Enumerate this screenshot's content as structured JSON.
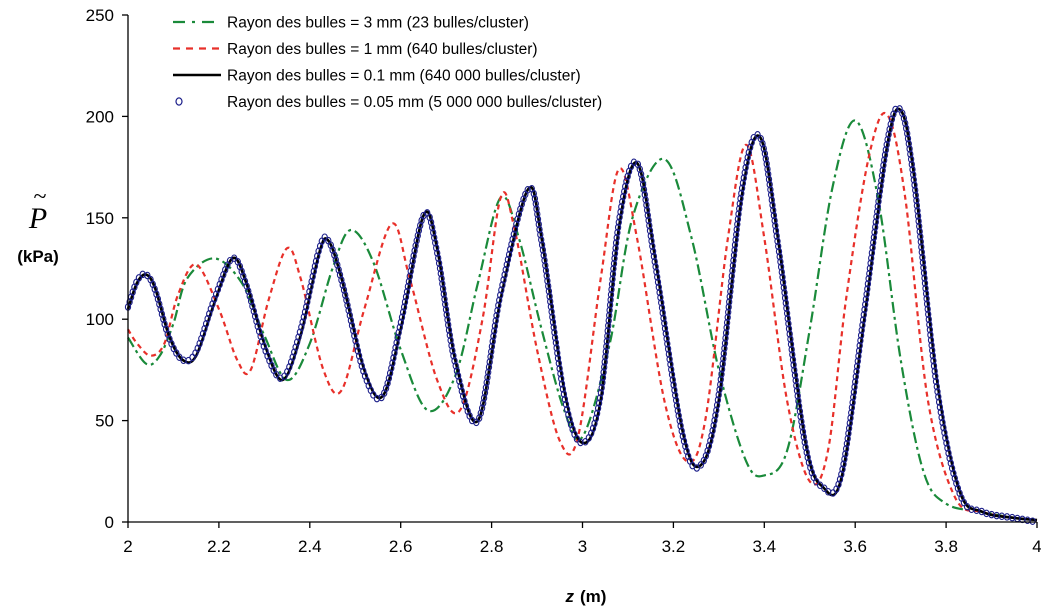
{
  "chart_data": {
    "type": "line",
    "xlabel_var": "z",
    "xlabel_unit": "(m)",
    "ylabel_symbol": "P",
    "ylabel_accent": "~",
    "ylabel_unit": "(kPa)",
    "xlim": [
      2,
      4
    ],
    "ylim": [
      0,
      250
    ],
    "xticks": [
      "2",
      "2.2",
      "2.4",
      "2.6",
      "2.8",
      "3",
      "3.2",
      "3.4",
      "3.6",
      "3.8",
      "4"
    ],
    "yticks": [
      "0",
      "50",
      "100",
      "150",
      "200",
      "250"
    ],
    "grid": false,
    "legend_position": "top-left",
    "colors": {
      "axis": "#000000",
      "green": "#1a8a3a",
      "red": "#e8302a",
      "black": "#000000",
      "navy": "#1c1f8a"
    },
    "series": [
      {
        "name": "Rayon des bulles = 3 mm (23 bulles/cluster)",
        "style": "dash-dot",
        "color": "#1a8a3a",
        "points": [
          [
            2.0,
            91
          ],
          [
            2.04,
            78
          ],
          [
            2.07,
            82
          ],
          [
            2.1,
            98
          ],
          [
            2.13,
            120
          ],
          [
            2.19,
            130
          ],
          [
            2.25,
            118
          ],
          [
            2.3,
            92
          ],
          [
            2.35,
            70
          ],
          [
            2.4,
            88
          ],
          [
            2.45,
            125
          ],
          [
            2.49,
            144
          ],
          [
            2.54,
            128
          ],
          [
            2.6,
            85
          ],
          [
            2.66,
            55
          ],
          [
            2.72,
            72
          ],
          [
            2.77,
            118
          ],
          [
            2.82,
            160
          ],
          [
            2.86,
            140
          ],
          [
            2.91,
            95
          ],
          [
            2.96,
            55
          ],
          [
            3.0,
            42
          ],
          [
            3.06,
            88
          ],
          [
            3.11,
            150
          ],
          [
            3.18,
            179
          ],
          [
            3.24,
            140
          ],
          [
            3.3,
            75
          ],
          [
            3.36,
            30
          ],
          [
            3.4,
            23
          ],
          [
            3.45,
            35
          ],
          [
            3.5,
            95
          ],
          [
            3.55,
            165
          ],
          [
            3.6,
            198
          ],
          [
            3.65,
            160
          ],
          [
            3.7,
            80
          ],
          [
            3.75,
            25
          ],
          [
            3.8,
            9
          ],
          [
            3.88,
            5
          ],
          [
            3.95,
            2
          ],
          [
            4.0,
            1
          ]
        ]
      },
      {
        "name": "Rayon des bulles = 1 mm (640 bulles/cluster)",
        "style": "dashed",
        "color": "#e8302a",
        "points": [
          [
            2.0,
            95
          ],
          [
            2.02,
            88
          ],
          [
            2.05,
            82
          ],
          [
            2.08,
            88
          ],
          [
            2.11,
            112
          ],
          [
            2.15,
            127
          ],
          [
            2.2,
            105
          ],
          [
            2.24,
            80
          ],
          [
            2.27,
            75
          ],
          [
            2.31,
            110
          ],
          [
            2.35,
            135
          ],
          [
            2.38,
            120
          ],
          [
            2.43,
            75
          ],
          [
            2.47,
            65
          ],
          [
            2.52,
            105
          ],
          [
            2.58,
            147
          ],
          [
            2.62,
            120
          ],
          [
            2.68,
            70
          ],
          [
            2.73,
            55
          ],
          [
            2.78,
            100
          ],
          [
            2.82,
            160
          ],
          [
            2.85,
            145
          ],
          [
            2.9,
            85
          ],
          [
            2.95,
            40
          ],
          [
            2.99,
            42
          ],
          [
            3.04,
            120
          ],
          [
            3.08,
            174
          ],
          [
            3.12,
            140
          ],
          [
            3.18,
            60
          ],
          [
            3.23,
            30
          ],
          [
            3.27,
            50
          ],
          [
            3.32,
            140
          ],
          [
            3.36,
            186
          ],
          [
            3.4,
            140
          ],
          [
            3.45,
            60
          ],
          [
            3.5,
            20
          ],
          [
            3.54,
            35
          ],
          [
            3.58,
            110
          ],
          [
            3.63,
            180
          ],
          [
            3.67,
            201
          ],
          [
            3.71,
            160
          ],
          [
            3.76,
            60
          ],
          [
            3.82,
            12
          ],
          [
            3.88,
            5
          ],
          [
            3.95,
            2
          ],
          [
            4.0,
            1
          ]
        ]
      },
      {
        "name": "Rayon des bulles = 0.1 mm (640 000 bulles/cluster)",
        "style": "solid",
        "color": "#000000",
        "points": [
          [
            2.0,
            105
          ],
          [
            2.02,
            118
          ],
          [
            2.04,
            122
          ],
          [
            2.06,
            115
          ],
          [
            2.09,
            92
          ],
          [
            2.12,
            80
          ],
          [
            2.15,
            82
          ],
          [
            2.19,
            108
          ],
          [
            2.23,
            130
          ],
          [
            2.26,
            118
          ],
          [
            2.3,
            88
          ],
          [
            2.34,
            70
          ],
          [
            2.38,
            92
          ],
          [
            2.42,
            132
          ],
          [
            2.44,
            139
          ],
          [
            2.47,
            120
          ],
          [
            2.52,
            75
          ],
          [
            2.56,
            62
          ],
          [
            2.6,
            95
          ],
          [
            2.65,
            151
          ],
          [
            2.68,
            135
          ],
          [
            2.72,
            80
          ],
          [
            2.77,
            50
          ],
          [
            2.82,
            110
          ],
          [
            2.88,
            164
          ],
          [
            2.91,
            140
          ],
          [
            2.96,
            65
          ],
          [
            3.0,
            39
          ],
          [
            3.04,
            60
          ],
          [
            3.08,
            145
          ],
          [
            3.12,
            177
          ],
          [
            3.16,
            130
          ],
          [
            3.22,
            45
          ],
          [
            3.26,
            28
          ],
          [
            3.3,
            60
          ],
          [
            3.35,
            160
          ],
          [
            3.39,
            190
          ],
          [
            3.43,
            140
          ],
          [
            3.49,
            40
          ],
          [
            3.53,
            17
          ],
          [
            3.57,
            22
          ],
          [
            3.62,
            100
          ],
          [
            3.67,
            185
          ],
          [
            3.7,
            203
          ],
          [
            3.73,
            170
          ],
          [
            3.78,
            70
          ],
          [
            3.83,
            15
          ],
          [
            3.88,
            5
          ],
          [
            3.95,
            2
          ],
          [
            4.0,
            1
          ]
        ]
      },
      {
        "name": "Rayon des bulles = 0.05 mm (5 000 000 bulles/cluster)",
        "style": "markers",
        "color": "#1c1f8a",
        "points": [
          [
            2.0,
            106
          ],
          [
            2.02,
            119
          ],
          [
            2.04,
            122
          ],
          [
            2.06,
            114
          ],
          [
            2.09,
            91
          ],
          [
            2.12,
            80
          ],
          [
            2.15,
            84
          ],
          [
            2.19,
            110
          ],
          [
            2.23,
            130
          ],
          [
            2.26,
            117
          ],
          [
            2.3,
            86
          ],
          [
            2.34,
            71
          ],
          [
            2.38,
            95
          ],
          [
            2.42,
            134
          ],
          [
            2.44,
            139
          ],
          [
            2.47,
            119
          ],
          [
            2.52,
            73
          ],
          [
            2.56,
            62
          ],
          [
            2.6,
            98
          ],
          [
            2.65,
            151
          ],
          [
            2.68,
            133
          ],
          [
            2.72,
            78
          ],
          [
            2.77,
            50
          ],
          [
            2.82,
            113
          ],
          [
            2.88,
            164
          ],
          [
            2.91,
            138
          ],
          [
            2.96,
            62
          ],
          [
            3.0,
            39
          ],
          [
            3.04,
            63
          ],
          [
            3.08,
            148
          ],
          [
            3.12,
            177
          ],
          [
            3.16,
            127
          ],
          [
            3.22,
            43
          ],
          [
            3.26,
            28
          ],
          [
            3.3,
            63
          ],
          [
            3.35,
            163
          ],
          [
            3.39,
            190
          ],
          [
            3.43,
            137
          ],
          [
            3.49,
            38
          ],
          [
            3.53,
            17
          ],
          [
            3.57,
            24
          ],
          [
            3.62,
            104
          ],
          [
            3.67,
            187
          ],
          [
            3.7,
            203
          ],
          [
            3.73,
            167
          ],
          [
            3.78,
            66
          ],
          [
            3.83,
            14
          ],
          [
            3.88,
            5
          ],
          [
            3.95,
            2
          ],
          [
            4.0,
            0
          ]
        ]
      }
    ]
  }
}
